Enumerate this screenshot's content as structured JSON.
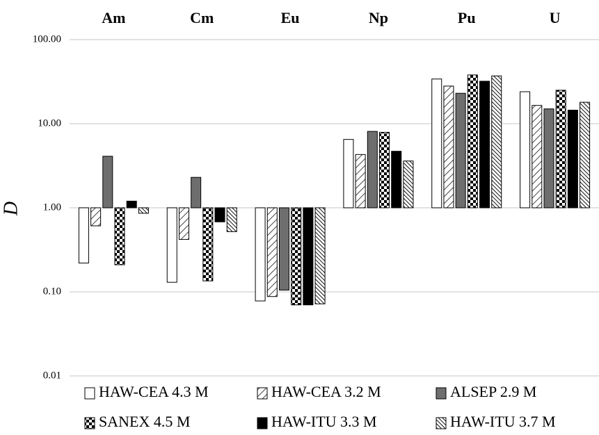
{
  "chart_data": {
    "type": "bar",
    "scale": "log",
    "ylabel": "D",
    "categories": [
      "Am",
      "Cm",
      "Eu",
      "Np",
      "Pu",
      "U"
    ],
    "y_ticks": [
      "0.01",
      "0.10",
      "1.00",
      "10.00",
      "100.00"
    ],
    "ylim": [
      0.01,
      100
    ],
    "baseline": 1.0,
    "grid": true,
    "legend_position": "bottom",
    "series": [
      {
        "name": "HAW-CEA 4.3 M",
        "pattern": "white",
        "values": [
          0.22,
          0.13,
          0.078,
          6.5,
          34,
          24
        ]
      },
      {
        "name": "HAW-CEA 3.2 M",
        "pattern": "diagonal-wide",
        "values": [
          0.61,
          0.42,
          0.088,
          4.3,
          28,
          16.5
        ]
      },
      {
        "name": "ALSEP 2.9 M",
        "pattern": "gray",
        "values": [
          4.1,
          2.3,
          0.105,
          8.1,
          23,
          15
        ]
      },
      {
        "name": "SANEX 4.5 M",
        "pattern": "checker",
        "values": [
          0.21,
          0.135,
          0.07,
          7.9,
          38,
          25
        ]
      },
      {
        "name": "HAW-ITU 3.3 M",
        "pattern": "black",
        "values": [
          1.2,
          0.68,
          0.07,
          4.7,
          32,
          14.5
        ]
      },
      {
        "name": "HAW-ITU 3.7 M",
        "pattern": "diagonal-dense",
        "values": [
          0.86,
          0.52,
          0.072,
          3.6,
          37,
          18
        ]
      }
    ],
    "colors": {
      "grid": "#d9d9d9",
      "gray_fill": "#6e6e6e",
      "black_fill": "#000000",
      "stroke": "#000000"
    }
  }
}
